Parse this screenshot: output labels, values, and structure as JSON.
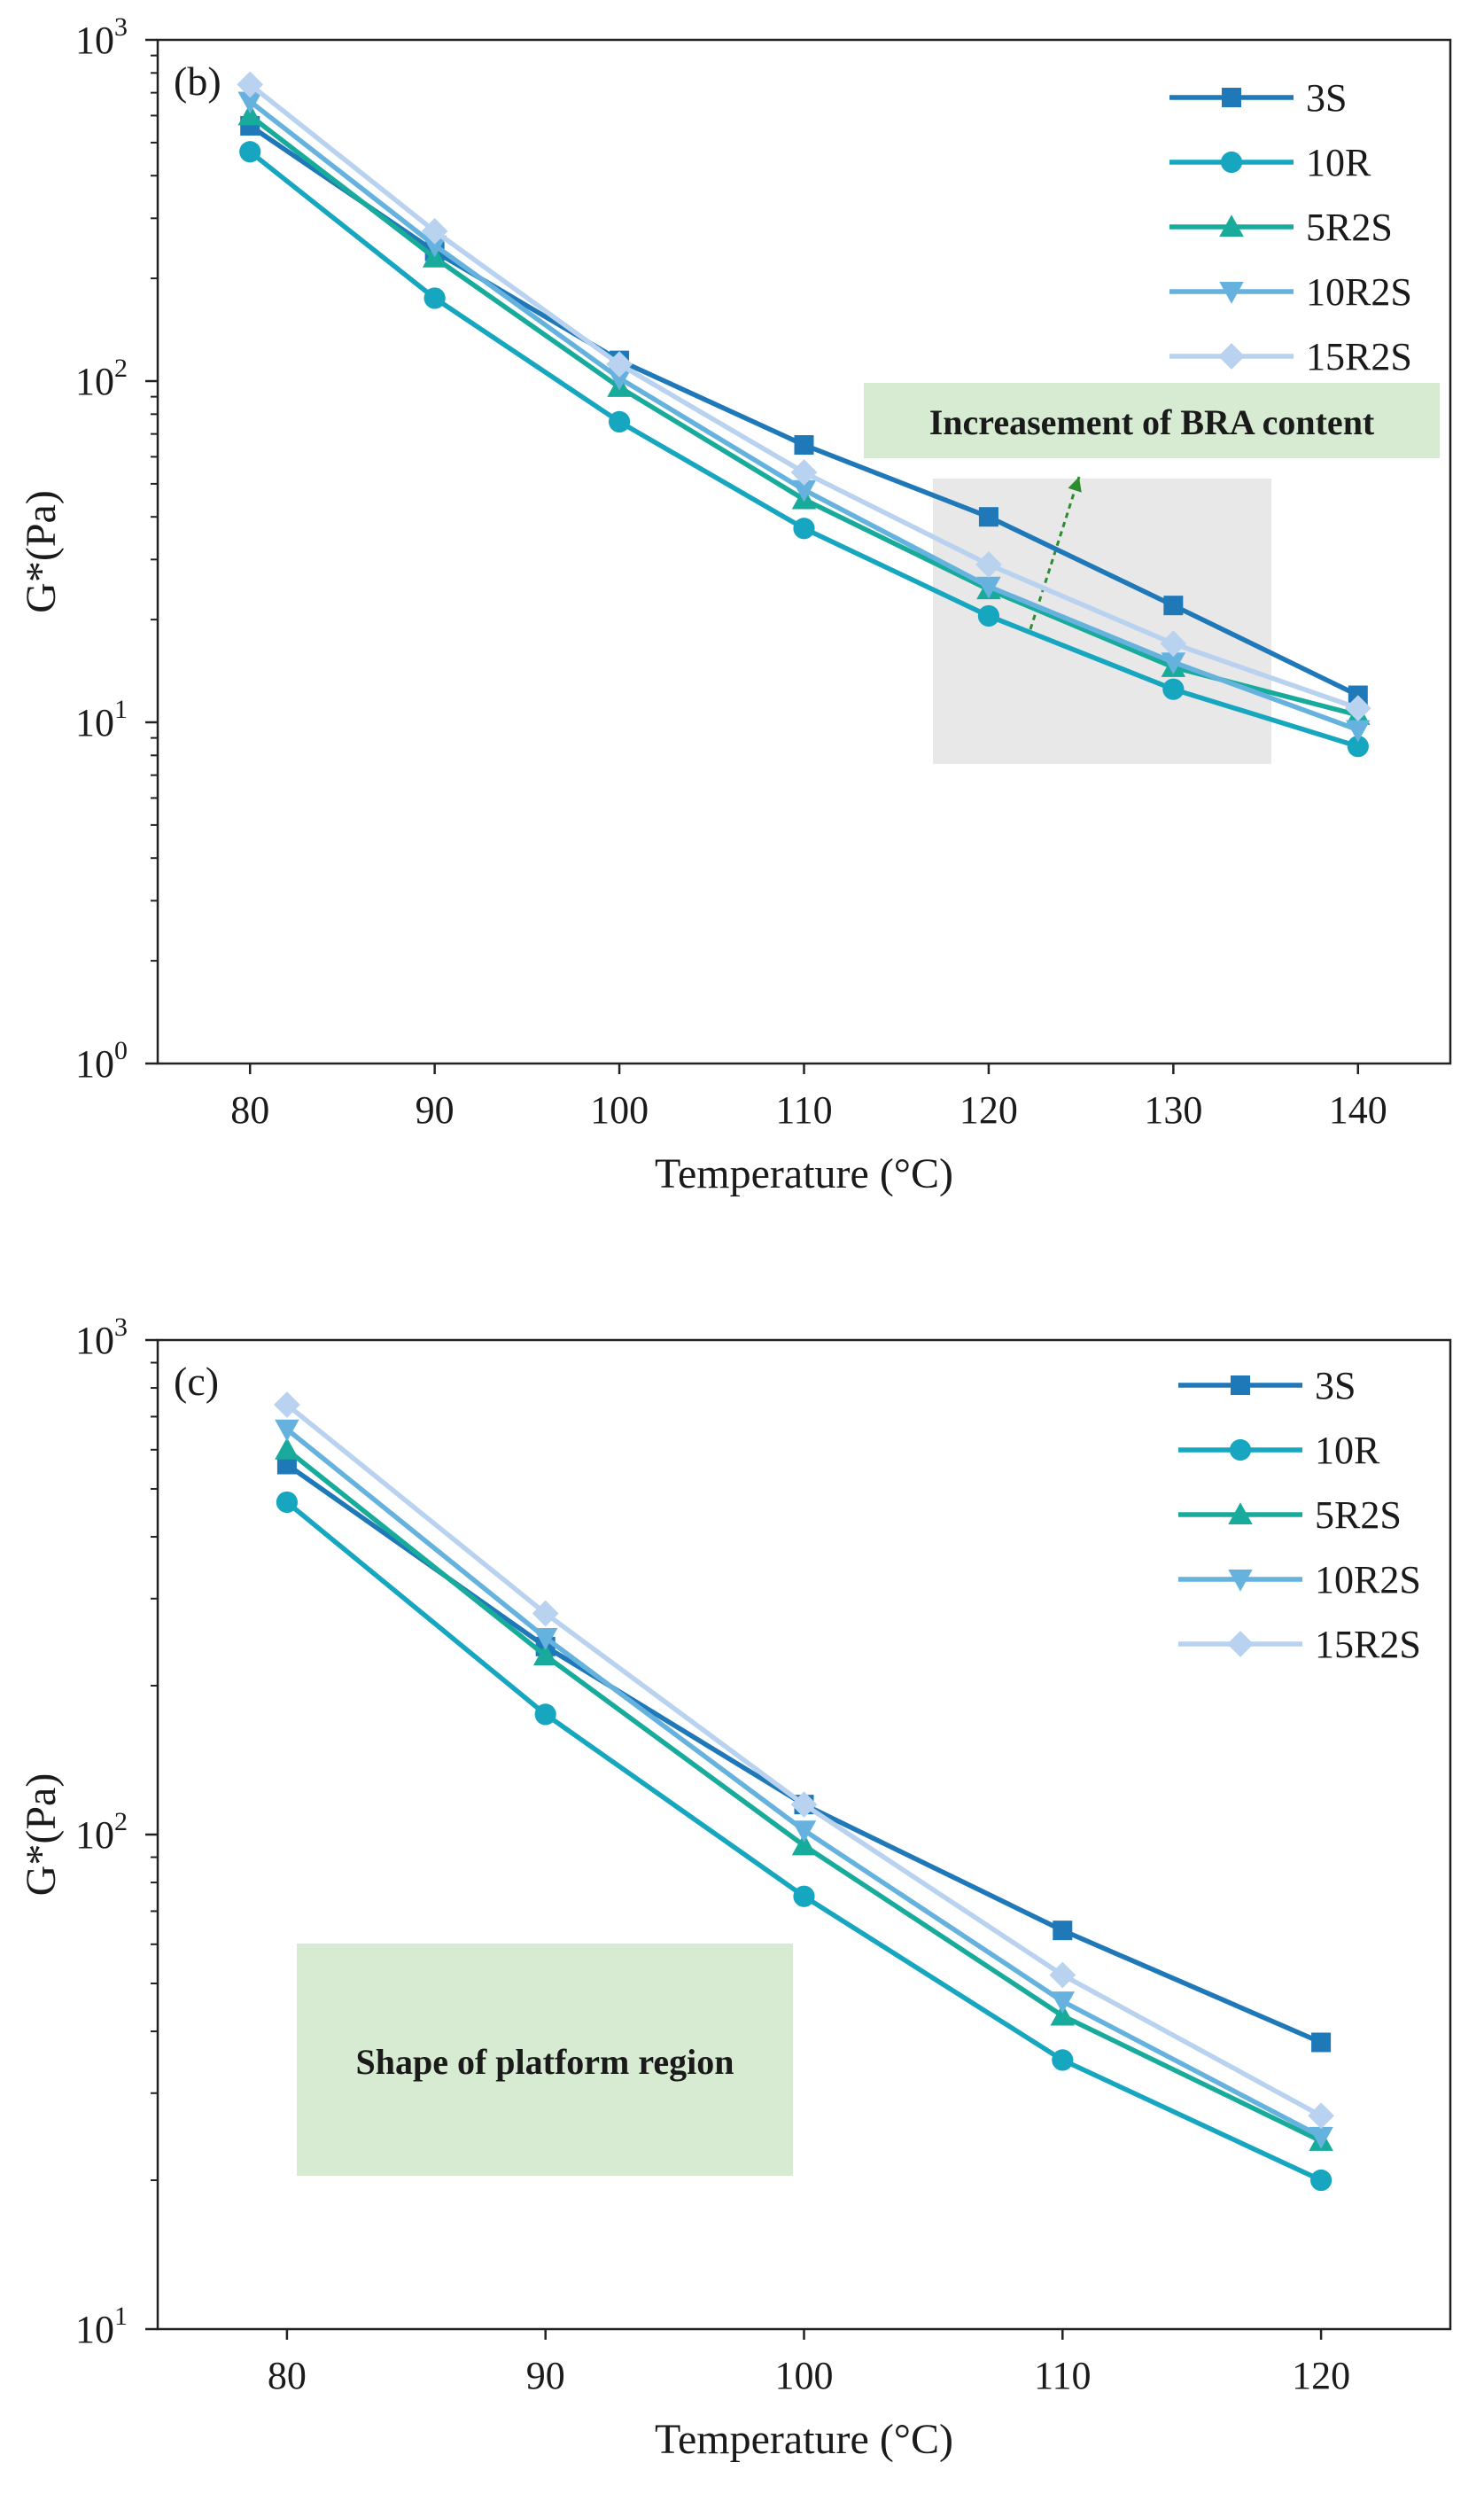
{
  "colors": {
    "3S": "#1f78b8",
    "10R": "#16a6c0",
    "5R2S": "#18ab9c",
    "10R2S": "#66b2df",
    "15R2S": "#b8d2ef",
    "arrow": "#2e8b2e",
    "annotation_green": "#d7ebd3",
    "annotation_gray": "#e8e8e8"
  },
  "chart_data": [
    {
      "type": "line",
      "panel_label": "(b)",
      "xlabel": "Temperature (°C)",
      "ylabel": "G*(Pa)",
      "yscale": "log",
      "xlim": [
        75,
        145
      ],
      "ylim": [
        1,
        1000
      ],
      "x": [
        80,
        90,
        100,
        110,
        120,
        130,
        140
      ],
      "x_ticks": [
        "80",
        "90",
        "100",
        "110",
        "120",
        "130",
        "140"
      ],
      "y_ticks": [
        {
          "base": "10",
          "exp": "0",
          "value": 1
        },
        {
          "base": "10",
          "exp": "1",
          "value": 10
        },
        {
          "base": "10",
          "exp": "2",
          "value": 100
        },
        {
          "base": "10",
          "exp": "3",
          "value": 1000
        }
      ],
      "series": [
        {
          "name": "3S",
          "marker": "square",
          "values": [
            560,
            240,
            115,
            65,
            40,
            22,
            12
          ]
        },
        {
          "name": "10R",
          "marker": "circle",
          "values": [
            470,
            175,
            76,
            37,
            20.5,
            12.5,
            8.5
          ]
        },
        {
          "name": "5R2S",
          "marker": "triangle-up",
          "values": [
            600,
            230,
            96,
            45,
            24.5,
            14.5,
            10.5
          ]
        },
        {
          "name": "10R2S",
          "marker": "triangle-down",
          "values": [
            660,
            250,
            102,
            48,
            25,
            15,
            9.5
          ]
        },
        {
          "name": "15R2S",
          "marker": "diamond",
          "values": [
            740,
            275,
            112,
            54,
            29,
            17,
            11
          ]
        }
      ],
      "annotation": "Increasement of BRA content"
    },
    {
      "type": "line",
      "panel_label": "(c)",
      "xlabel": "Temperature (°C)",
      "ylabel": "G*(Pa)",
      "yscale": "log",
      "xlim": [
        75,
        125
      ],
      "ylim": [
        10,
        1000
      ],
      "x": [
        80,
        90,
        100,
        110,
        120
      ],
      "x_ticks": [
        "80",
        "90",
        "100",
        "110",
        "120"
      ],
      "y_ticks": [
        {
          "base": "10",
          "exp": "1",
          "value": 10
        },
        {
          "base": "10",
          "exp": "2",
          "value": 100
        },
        {
          "base": "10",
          "exp": "3",
          "value": 1000
        }
      ],
      "series": [
        {
          "name": "3S",
          "marker": "square",
          "values": [
            560,
            240,
            115,
            64,
            38
          ]
        },
        {
          "name": "10R",
          "marker": "circle",
          "values": [
            470,
            175,
            75,
            35,
            20
          ]
        },
        {
          "name": "5R2S",
          "marker": "triangle-up",
          "values": [
            600,
            230,
            95,
            43,
            24
          ]
        },
        {
          "name": "10R2S",
          "marker": "triangle-down",
          "values": [
            660,
            250,
            102,
            46,
            24.5
          ]
        },
        {
          "name": "15R2S",
          "marker": "diamond",
          "values": [
            740,
            280,
            115,
            52,
            27
          ]
        }
      ],
      "annotation": "Shape of platform region"
    }
  ]
}
